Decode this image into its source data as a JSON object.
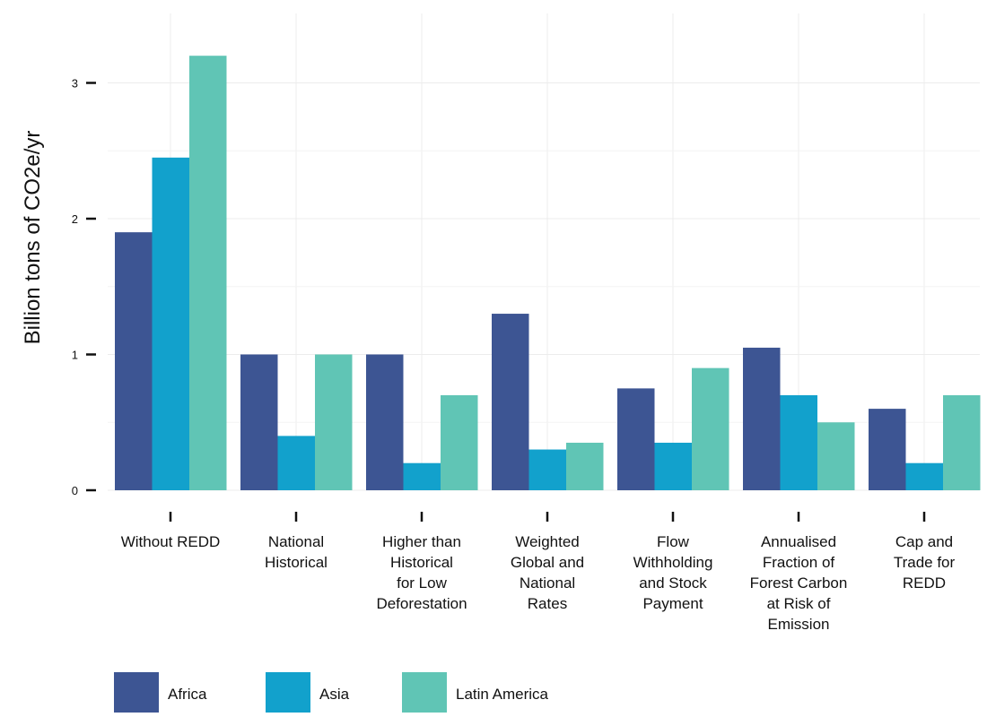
{
  "chart_data": {
    "type": "bar",
    "title": "",
    "xlabel": "",
    "ylabel": "Billion tons of CO2e/yr",
    "ylim": [
      0,
      3.45
    ],
    "yticks": [
      "0",
      "1",
      "2",
      "3"
    ],
    "grid": true,
    "legend_position": "bottom-left",
    "categories": [
      "Without REDD",
      "National Historical",
      "Higher than Historical for Low Deforestation",
      "Weighted Global and National Rates",
      "Flow Withholding and Stock Payment",
      "Annualised Fraction of Forest Carbon at Risk of Emission",
      "Cap and Trade for REDD"
    ],
    "category_label_lines": [
      [
        "Without REDD"
      ],
      [
        "National",
        "Historical"
      ],
      [
        "Higher than",
        "Historical",
        "for Low",
        "Deforestation"
      ],
      [
        "Weighted",
        "Global and",
        "National",
        "Rates"
      ],
      [
        "Flow",
        "Withholding",
        "and Stock",
        "Payment"
      ],
      [
        "Annualised",
        "Fraction of",
        "Forest Carbon",
        "at Risk of",
        "Emission"
      ],
      [
        "Cap and",
        "Trade for",
        "REDD"
      ]
    ],
    "series": [
      {
        "name": "Africa",
        "color": "#3d5593",
        "values": [
          1.9,
          1.0,
          1.0,
          1.3,
          0.75,
          1.05,
          0.6
        ]
      },
      {
        "name": "Asia",
        "color": "#12a1cc",
        "values": [
          2.45,
          0.4,
          0.2,
          0.3,
          0.35,
          0.7,
          0.2
        ]
      },
      {
        "name": "Latin America",
        "color": "#60c5b5",
        "values": [
          3.2,
          1.0,
          0.7,
          0.35,
          0.9,
          0.5,
          0.7
        ]
      }
    ]
  }
}
